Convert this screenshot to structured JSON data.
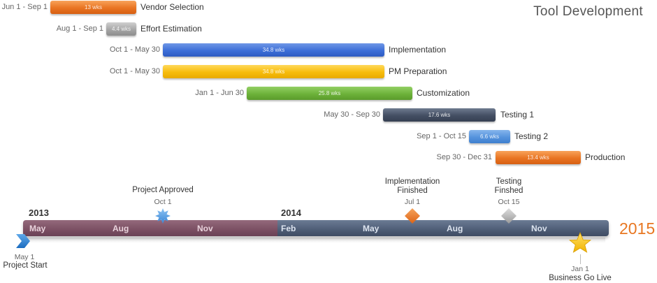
{
  "title": "Tool Development",
  "tasks": [
    {
      "dates": "Jun 1 - Sep 1",
      "duration": "13 wks",
      "name": "Vendor Selection",
      "color": "#e97422"
    },
    {
      "dates": "Aug 1 - Sep 1",
      "duration": "4.4 wks",
      "name": "Effort Estimation",
      "color": "#a6a6a6"
    },
    {
      "dates": "Oct 1 - May 30",
      "duration": "34.8 wks",
      "name": "Implementation",
      "color": "#3d6ed8"
    },
    {
      "dates": "Oct 1 - May 30",
      "duration": "34.8 wks",
      "name": "PM Preparation",
      "color": "#f7bc0c"
    },
    {
      "dates": "Jan 1 - Jun 30",
      "duration": "25.8 wks",
      "name": "Customization",
      "color": "#6db23a"
    },
    {
      "dates": "May 30 - Sep 30",
      "duration": "17.6 wks",
      "name": "Testing 1",
      "color": "#444f63"
    },
    {
      "dates": "Sep 1 - Oct 15",
      "duration": "6.6 wks",
      "name": "Testing 2",
      "color": "#5593dd"
    },
    {
      "dates": "Sep 30 - Dec 31",
      "duration": "13.4 wks",
      "name": "Production",
      "color": "#e97422"
    }
  ],
  "timeline": {
    "year_start": "2013",
    "year_mid": "2014",
    "year_end": "2015",
    "months": [
      "May",
      "Aug",
      "Nov",
      "Feb",
      "May",
      "Aug",
      "Nov"
    ]
  },
  "milestones": {
    "start": {
      "label": "Project Start",
      "date": "May 1",
      "icon": "chevron-arrow-icon"
    },
    "approved": {
      "label": "Project Approved",
      "date": "Oct 1",
      "icon": "starburst-icon"
    },
    "impl": {
      "label_line1": "Implementation",
      "label_line2": "Finished",
      "date": "Jul 1",
      "icon": "diamond-icon"
    },
    "testing": {
      "label_line1": "Testing",
      "label_line2": "Finshed",
      "date": "Oct 15",
      "icon": "diamond-icon"
    },
    "golive": {
      "label": "Business Go Live",
      "date": "Jan 1",
      "icon": "star-icon"
    }
  }
}
